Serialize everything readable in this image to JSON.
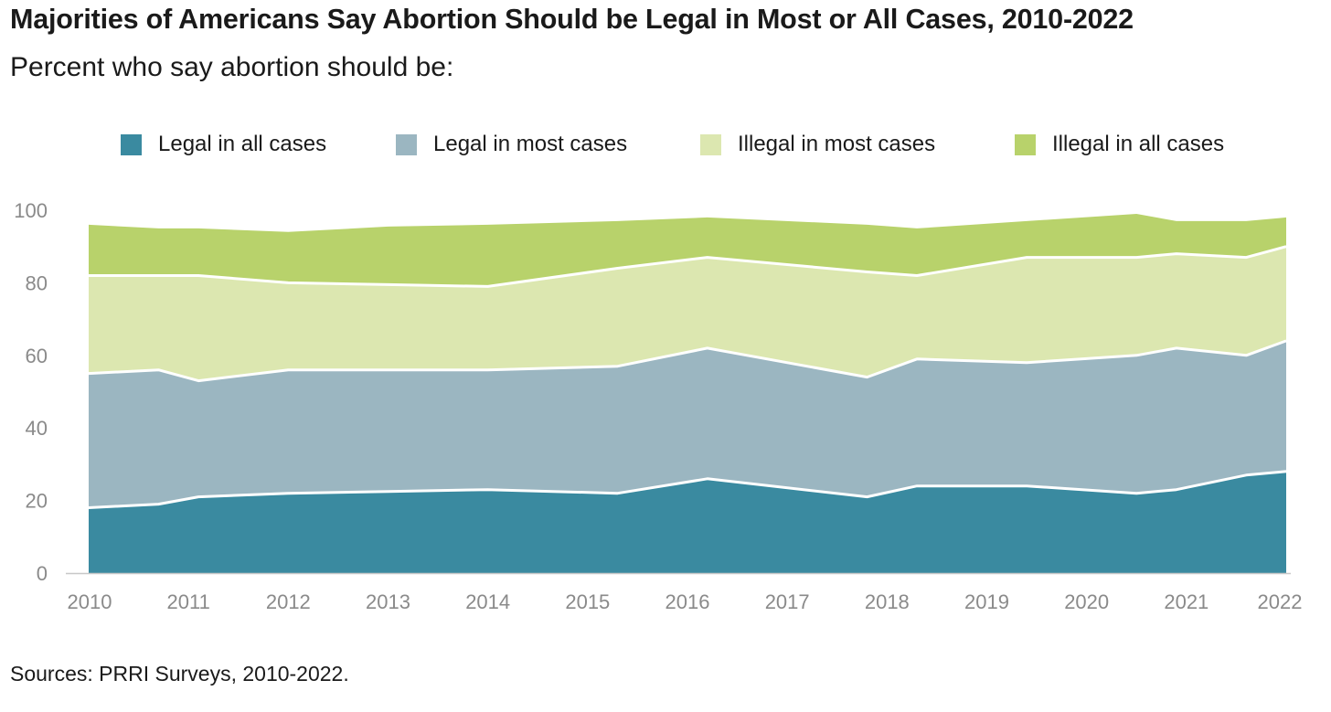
{
  "title": "Majorities of Americans Say Abortion Should be Legal in Most or All Cases, 2010-2022",
  "subtitle": "Percent who say abortion should be:",
  "source": "Sources: PRRI Surveys, 2010-2022.",
  "chart_data": {
    "type": "area",
    "stacked": true,
    "x": [
      2010,
      2010.7,
      2011.1,
      2012,
      2013,
      2014,
      2015.3,
      2016.2,
      2017.8,
      2018.3,
      2019.4,
      2020.5,
      2020.9,
      2021.6,
      2022
    ],
    "x_ticks": [
      "2010",
      "2011",
      "2012",
      "2013",
      "2014",
      "2015",
      "2016",
      "2017",
      "2018",
      "2019",
      "2020",
      "2021",
      "2022"
    ],
    "x_tick_values": [
      2010,
      2011,
      2012,
      2013,
      2014,
      2015,
      2016,
      2017,
      2018,
      2019,
      2020,
      2021,
      2022
    ],
    "ylim": [
      0,
      100
    ],
    "y_ticks": [
      "0",
      "20",
      "40",
      "60",
      "80",
      "100"
    ],
    "y_tick_values": [
      0,
      20,
      40,
      60,
      80,
      100
    ],
    "grid": false,
    "legend_position": "top",
    "series": [
      {
        "name": "Legal in all cases",
        "color": "#3a8aa0",
        "values": [
          18,
          19,
          21,
          22,
          22.5,
          23,
          22,
          26,
          21,
          24,
          24,
          22,
          23,
          27,
          28
        ]
      },
      {
        "name": "Legal in most cases",
        "color": "#9bb6c1",
        "values": [
          37,
          37,
          32,
          34,
          33.5,
          33,
          35,
          36,
          33,
          35,
          34,
          38,
          39,
          33,
          36
        ]
      },
      {
        "name": "Illegal in most cases",
        "color": "#dce7b0",
        "values": [
          27,
          26,
          29,
          24,
          23.5,
          23,
          27,
          25,
          29,
          23,
          29,
          27,
          26,
          27,
          26
        ]
      },
      {
        "name": "Illegal in all cases",
        "color": "#b8d26b",
        "values": [
          14,
          13,
          13,
          14,
          16,
          17,
          13,
          11,
          13,
          13,
          10,
          12,
          9,
          10,
          8
        ]
      }
    ]
  }
}
